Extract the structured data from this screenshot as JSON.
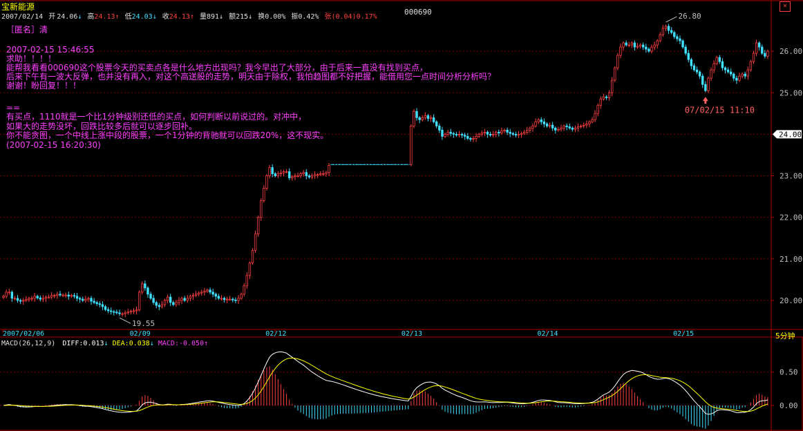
{
  "stock": {
    "name": "宝新能源",
    "code": "000690",
    "period": "5分钟",
    "info": {
      "date": "2007/02/14",
      "open_label": "开",
      "open": "24.06",
      "high_label": "高",
      "high": "24.13",
      "low_label": "低",
      "low": "24.03",
      "close_label": "收",
      "close": "24.13",
      "vol_label": "量",
      "vol": "891",
      "amt_label": "额",
      "amt": "215",
      "turn_label": "换",
      "turn": "0.00%",
      "amp_label": "振",
      "amp": "0.42%",
      "chg_label": "张",
      "chg": "(0.04)",
      "chg_pct": "0.17%"
    }
  },
  "annotation": {
    "author": "［匿名］清",
    "question_time": "2007-02-15 15:46:55",
    "question_lines": [
      "求助！！！！",
      "能帮我看看000690这个股票今天的买卖点各是什么地方出现吗？我今早出了大部分，由于后来一直没有找到买点，",
      "后来下午有一波大反弹，也并没有再入，对这个高送股的走势，明天由于除权，我怕趋图都不好把握，能借用您一点时间分析分析吗？",
      "谢谢！盼回复！！！"
    ],
    "separator": "==",
    "answer_lines": [
      "有买点，1110就是一个比1分钟级别还低的买点，如何判断以前说过的。对冲中，",
      "如果大的走势没坏，回跌比较多后就可以逐步回补。",
      "你不能贪图，一个中线上涨中段的股票，一个1分钟的背驰就可以回跌20%，这不现实。",
      "(2007-02-15 16:20:30)"
    ]
  },
  "chart_data": [
    {
      "type": "candlestick",
      "y_ticks": [
        20.0,
        21.0,
        22.0,
        23.0,
        24.0,
        25.0,
        26.0
      ],
      "y_tick_labels": [
        "20.00",
        "21.00",
        "22.00",
        "23.00",
        "24.00",
        "25.00",
        "26.00"
      ],
      "ylim": [
        19.3,
        26.9
      ],
      "x_labels": [
        {
          "label": "2007/02/06",
          "bar": 0
        },
        {
          "label": "02/09",
          "bar": 48
        },
        {
          "label": "02/12",
          "bar": 96
        },
        {
          "label": "02/13",
          "bar": 144
        },
        {
          "label": "02/14",
          "bar": 192
        },
        {
          "label": "02/15",
          "bar": 240
        }
      ],
      "current_price": "24.00",
      "prev_close_line": 23.27,
      "max_label": "26.80",
      "min_label": "19.55",
      "buy_point_label": "07/02/15 11:10",
      "closes": [
        20.1,
        20.2,
        20.2,
        20.05,
        20.05,
        20.0,
        19.98,
        20.0,
        20.02,
        20.05,
        20.05,
        20.1,
        20.06,
        20.03,
        20.05,
        20.08,
        20.08,
        20.12,
        20.12,
        20.15,
        20.13,
        20.13,
        20.13,
        20.1,
        20.12,
        20.1,
        20.05,
        20.03,
        20.0,
        20.03,
        20.05,
        19.98,
        19.95,
        19.92,
        19.9,
        19.85,
        19.78,
        19.75,
        19.73,
        19.72,
        19.7,
        19.68,
        19.68,
        19.7,
        19.72,
        19.74,
        19.75,
        19.77,
        20.2,
        20.4,
        20.3,
        20.15,
        20.05,
        19.95,
        19.88,
        19.85,
        19.9,
        20.0,
        20.08,
        19.95,
        19.9,
        19.95,
        20.0,
        20.05,
        20.0,
        20.05,
        20.1,
        20.12,
        20.15,
        20.18,
        20.2,
        20.22,
        20.25,
        20.2,
        20.15,
        20.1,
        20.05,
        20.05,
        20.02,
        20.03,
        20.03,
        20.01,
        20.0,
        20.05,
        20.15,
        20.35,
        20.6,
        20.9,
        21.2,
        21.6,
        22.0,
        22.4,
        22.7,
        23.0,
        23.2,
        23.05,
        23.0,
        23.05,
        23.07,
        23.1,
        23.1,
        22.95,
        22.98,
        23.0,
        23.0,
        23.05,
        23.08,
        23.0,
        22.97,
        23.0,
        23.03,
        23.03,
        23.05,
        23.05,
        23.08,
        23.25,
        23.27,
        23.27,
        23.27,
        23.27,
        23.27,
        23.27,
        23.27,
        23.27,
        23.27,
        23.27,
        23.27,
        23.27,
        23.27,
        23.27,
        23.27,
        23.27,
        23.27,
        23.27,
        23.27,
        23.27,
        23.27,
        23.27,
        23.27,
        23.27,
        23.27,
        23.27,
        23.27,
        23.27,
        24.2,
        24.55,
        24.4,
        24.35,
        24.4,
        24.45,
        24.38,
        24.4,
        24.3,
        24.2,
        24.1,
        23.95,
        24.0,
        24.05,
        24.02,
        24.0,
        23.98,
        24.0,
        23.98,
        23.95,
        23.9,
        23.88,
        23.9,
        23.95,
        24.0,
        24.03,
        24.05,
        24.0,
        23.98,
        24.0,
        24.05,
        24.03,
        24.08,
        24.1,
        24.05,
        24.02,
        24.0,
        23.98,
        24.0,
        24.02,
        24.05,
        24.1,
        24.15,
        24.2,
        24.3,
        24.35,
        24.3,
        24.25,
        24.2,
        24.22,
        24.15,
        24.1,
        24.12,
        24.15,
        24.2,
        24.18,
        24.15,
        24.12,
        24.15,
        24.18,
        24.2,
        24.22,
        24.25,
        24.3,
        24.35,
        24.5,
        24.7,
        24.85,
        24.9,
        24.88,
        25.0,
        25.3,
        25.6,
        25.9,
        26.1,
        26.2,
        26.15,
        26.15,
        26.2,
        26.1,
        26.12,
        26.15,
        26.1,
        26.05,
        26.0,
        26.1,
        26.15,
        26.25,
        26.4,
        26.55,
        26.6,
        26.5,
        26.45,
        26.35,
        26.3,
        26.25,
        26.1,
        25.95,
        25.8,
        25.65,
        25.55,
        25.5,
        25.4,
        25.2,
        25.05,
        25.35,
        25.55,
        25.7,
        25.85,
        25.75,
        25.6,
        25.55,
        25.5,
        25.45,
        25.35,
        25.3,
        25.4,
        25.45,
        25.4,
        25.55,
        25.75,
        25.95,
        26.2,
        26.1,
        25.95,
        25.88,
        26.0
      ]
    },
    {
      "type": "macd",
      "title": "MACD(26,12,9)",
      "diff_label": "DIFF:",
      "diff": "0.013",
      "dea_label": "DEA:",
      "dea": "0.038",
      "macd_label": "MACD:",
      "macd": "-0.050",
      "y_ticks": [
        0.0,
        0.5
      ],
      "y_tick_labels": [
        "0.00",
        "0.50"
      ],
      "ylim": [
        -0.32,
        0.9
      ]
    }
  ],
  "colors": {
    "up": "#ff4040",
    "down": "#40e0ff",
    "grid": "#7a0000",
    "axis": "#b00000",
    "diff": "#ffffff",
    "dea": "#ffff00",
    "annotation": "#ff40ff"
  }
}
